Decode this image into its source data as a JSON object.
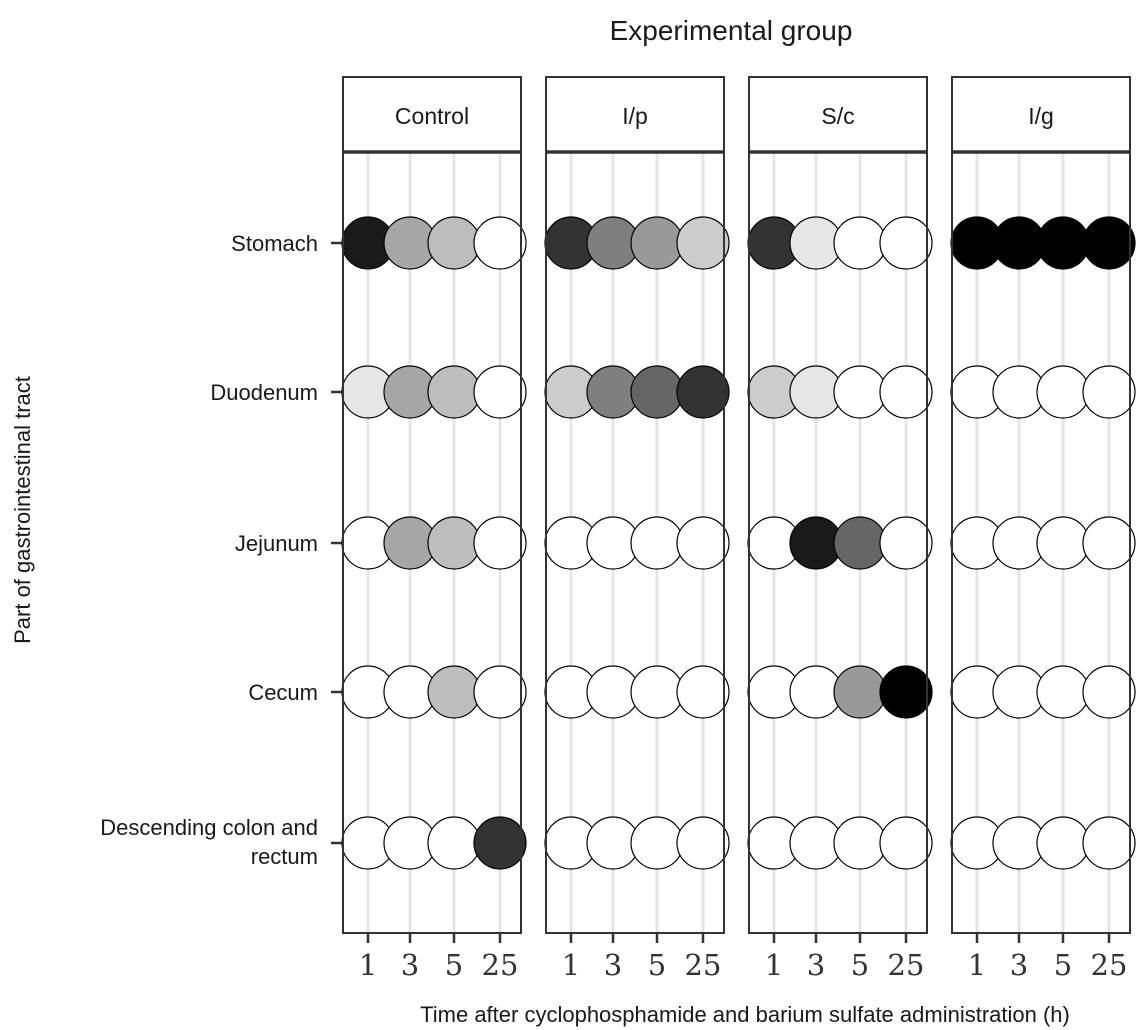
{
  "chart_data": {
    "type": "dot-matrix",
    "title": "Experimental group",
    "xlabel": "Time after cyclophosphamide and barium sulfate administration (h)",
    "ylabel": "Part of gastrointestinal tract",
    "x_ticks": [
      "1",
      "3",
      "5",
      "25"
    ],
    "rows": [
      "Stomach",
      "Duodenum",
      "Jejunum",
      "Cecum",
      "Descending colon and rectum"
    ],
    "panels": [
      {
        "name": "Control",
        "fills": [
          [
            "#1a1a1a",
            "#a6a6a6",
            "#bdbdbd",
            "#ffffff"
          ],
          [
            "#e6e6e6",
            "#a6a6a6",
            "#bdbdbd",
            "#ffffff"
          ],
          [
            "#ffffff",
            "#a6a6a6",
            "#bdbdbd",
            "#ffffff"
          ],
          [
            "#ffffff",
            "#ffffff",
            "#bdbdbd",
            "#ffffff"
          ],
          [
            "#ffffff",
            "#ffffff",
            "#ffffff",
            "#333333"
          ]
        ]
      },
      {
        "name": "I/p",
        "fills": [
          [
            "#333333",
            "#7f7f7f",
            "#999999",
            "#cccccc"
          ],
          [
            "#cccccc",
            "#7f7f7f",
            "#666666",
            "#333333"
          ],
          [
            "#ffffff",
            "#ffffff",
            "#ffffff",
            "#ffffff"
          ],
          [
            "#ffffff",
            "#ffffff",
            "#ffffff",
            "#ffffff"
          ],
          [
            "#ffffff",
            "#ffffff",
            "#ffffff",
            "#ffffff"
          ]
        ]
      },
      {
        "name": "S/c",
        "fills": [
          [
            "#333333",
            "#e6e6e6",
            "#ffffff",
            "#ffffff"
          ],
          [
            "#cccccc",
            "#e6e6e6",
            "#ffffff",
            "#ffffff"
          ],
          [
            "#ffffff",
            "#1a1a1a",
            "#666666",
            "#ffffff"
          ],
          [
            "#ffffff",
            "#ffffff",
            "#999999",
            "#000000"
          ],
          [
            "#ffffff",
            "#ffffff",
            "#ffffff",
            "#ffffff"
          ]
        ]
      },
      {
        "name": "I/g",
        "fills": [
          [
            "#000000",
            "#000000",
            "#000000",
            "#000000"
          ],
          [
            "#ffffff",
            "#ffffff",
            "#ffffff",
            "#ffffff"
          ],
          [
            "#ffffff",
            "#ffffff",
            "#ffffff",
            "#ffffff"
          ],
          [
            "#ffffff",
            "#ffffff",
            "#ffffff",
            "#ffffff"
          ],
          [
            "#ffffff",
            "#ffffff",
            "#ffffff",
            "#ffffff"
          ]
        ]
      }
    ]
  }
}
